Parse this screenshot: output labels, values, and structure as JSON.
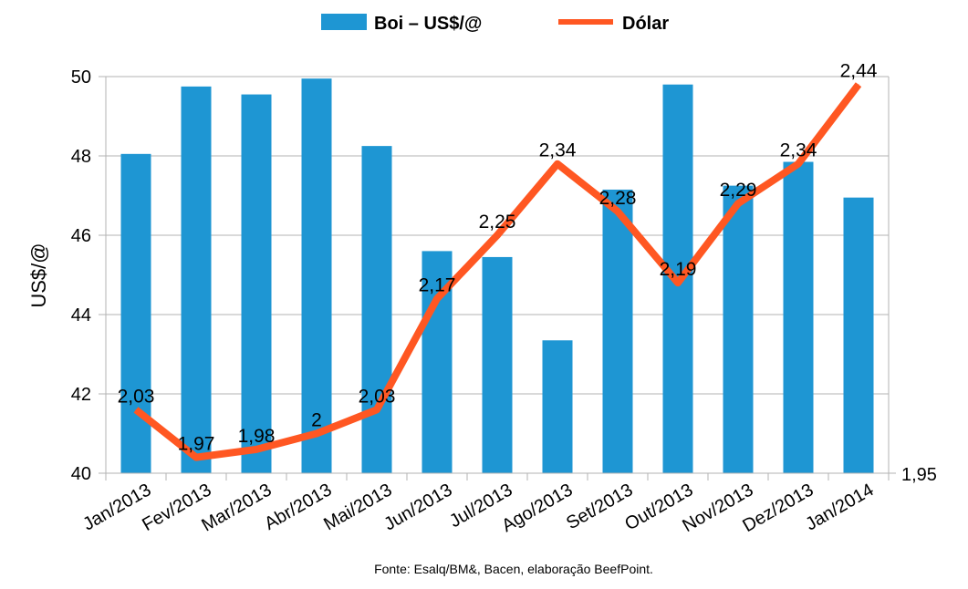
{
  "chart_data": {
    "type": "bar+line",
    "categories": [
      "Jan/2013",
      "Fev/2013",
      "Mar/2013",
      "Abr/2013",
      "Mai/2013",
      "Jun/2013",
      "Jul/2013",
      "Ago/2013",
      "Set/2013",
      "Out/2013",
      "Nov/2013",
      "Dez/2013",
      "Jan/2014"
    ],
    "series": [
      {
        "name": "Boi – US$/@",
        "type": "bar",
        "axis": "left",
        "color": "#1E96D3",
        "values": [
          48.05,
          49.75,
          49.55,
          49.95,
          48.25,
          45.6,
          45.45,
          43.35,
          47.15,
          49.8,
          47.25,
          47.85,
          46.95
        ]
      },
      {
        "name": "Dólar",
        "type": "line",
        "axis": "right",
        "color": "#FF5722",
        "values": [
          2.03,
          1.97,
          1.98,
          2,
          2.03,
          2.17,
          2.25,
          2.34,
          2.28,
          2.19,
          2.29,
          2.34,
          2.44
        ],
        "labels": [
          "2,03",
          "1,97",
          "1,98",
          "2",
          "2,03",
          "2,17",
          "2,25",
          "2,34",
          "2,28",
          "2,19",
          "2,29",
          "2,34",
          "2,44"
        ]
      }
    ],
    "ylabel": "US$/@",
    "ylim": [
      40,
      50
    ],
    "yticks": [
      "40",
      "42",
      "44",
      "46",
      "48",
      "50"
    ],
    "y2lim": [
      1.95,
      2.45
    ],
    "y2ticks": [
      "1,95"
    ],
    "grid": true,
    "legend_position": "top-center",
    "source": "Fonte: Esalq/BM&, Bacen, elaboração BeefPoint."
  }
}
